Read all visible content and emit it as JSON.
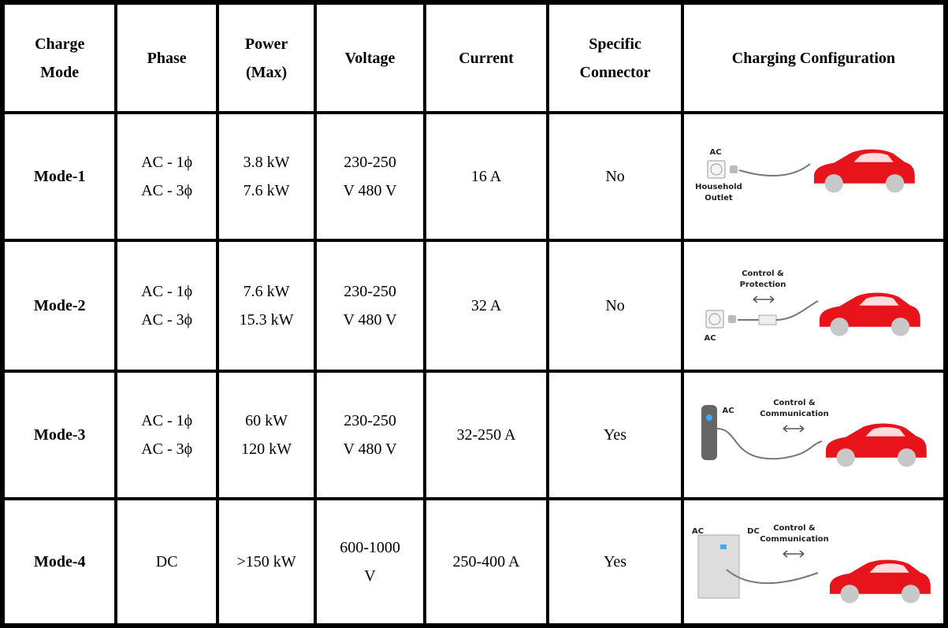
{
  "table": {
    "header": [
      [
        "Charge",
        "Mode"
      ],
      [
        "Phase"
      ],
      [
        "Power",
        "(Max)"
      ],
      [
        "Voltage"
      ],
      [
        "Current"
      ],
      [
        "Specific",
        "Connector"
      ],
      [
        "Charging Configuration"
      ]
    ],
    "rows": [
      {
        "cells": [
          [
            "Mode-1"
          ],
          [
            "AC - 1ϕ",
            "AC - 3ϕ"
          ],
          [
            "3.8 kW",
            "7.6 kW"
          ],
          [
            "230-250",
            "V 480 V"
          ],
          [
            "16 A"
          ],
          [
            "No"
          ]
        ],
        "config": [
          "AC",
          "Household",
          "Outlet"
        ]
      },
      {
        "cells": [
          [
            "Mode-2"
          ],
          [
            "AC - 1ϕ",
            "AC - 3ϕ"
          ],
          [
            "7.6 kW",
            "15.3 kW"
          ],
          [
            "230-250",
            "V 480 V"
          ],
          [
            "32 A"
          ],
          [
            "No"
          ]
        ],
        "config": [
          "Control &",
          "Protection",
          "AC"
        ]
      },
      {
        "cells": [
          [
            "Mode-3"
          ],
          [
            "AC - 1ϕ",
            "AC - 3ϕ"
          ],
          [
            "60 kW",
            "120 kW"
          ],
          [
            "230-250",
            "V 480 V"
          ],
          [
            "32-250 A"
          ],
          [
            "Yes"
          ]
        ],
        "config": [
          "AC",
          "Control &",
          "Communication"
        ]
      },
      {
        "cells": [
          [
            "Mode-4"
          ],
          [
            "DC"
          ],
          [
            ">150 kW"
          ],
          [
            "600-1000",
            "V"
          ],
          [
            "250-400 A"
          ],
          [
            "Yes"
          ]
        ],
        "config": [
          "AC",
          "DC",
          "Control &",
          "Communication"
        ]
      }
    ]
  }
}
